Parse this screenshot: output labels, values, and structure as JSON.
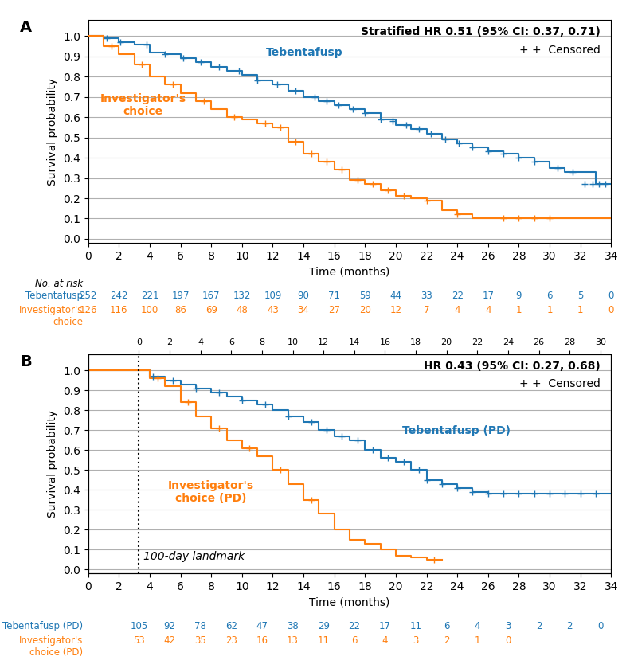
{
  "chart_data": [
    {
      "type": "line",
      "line_style": "steps",
      "marker": "+",
      "panel_label": "A",
      "hr_text": "Stratified HR 0.51 (95% CI: 0.37, 0.71)",
      "censored_label": "+ +  Censored",
      "xlabel": "Time (months)",
      "ylabel": "Survival probability",
      "xlim": [
        0,
        34
      ],
      "ylim": [
        -0.02,
        1.08
      ],
      "xticks": [
        0,
        2,
        4,
        6,
        8,
        10,
        12,
        14,
        16,
        18,
        20,
        22,
        24,
        26,
        28,
        30,
        32,
        34
      ],
      "yticks": [
        0.0,
        0.1,
        0.2,
        0.3,
        0.4,
        0.5,
        0.6,
        0.7,
        0.8,
        0.9,
        1.0
      ],
      "grid": "y",
      "series": [
        {
          "name": "Tebentafusp",
          "color": "#1f77b4",
          "x": [
            0,
            1,
            2,
            3,
            4,
            5,
            6,
            7,
            8,
            9,
            10,
            11,
            12,
            13,
            14,
            15,
            16,
            17,
            18,
            19,
            20,
            21,
            22,
            23,
            24,
            25,
            26,
            27,
            28,
            29,
            30,
            31,
            32,
            33,
            34
          ],
          "values": [
            1.0,
            0.99,
            0.97,
            0.96,
            0.92,
            0.91,
            0.89,
            0.87,
            0.85,
            0.83,
            0.81,
            0.78,
            0.76,
            0.73,
            0.7,
            0.68,
            0.66,
            0.64,
            0.62,
            0.59,
            0.56,
            0.54,
            0.52,
            0.49,
            0.47,
            0.45,
            0.43,
            0.42,
            0.4,
            0.38,
            0.35,
            0.33,
            0.33,
            0.27,
            0.27
          ],
          "censored_x": [
            1.2,
            2.1,
            3.8,
            5.0,
            6.2,
            7.3,
            8.5,
            9.8,
            11.0,
            12.3,
            13.5,
            14.7,
            15.5,
            16.3,
            17.2,
            18.0,
            19.0,
            19.8,
            20.7,
            21.5,
            22.3,
            23.2,
            24.1,
            25.0,
            26.0,
            27.0,
            28.0,
            29.0,
            30.5,
            31.5,
            32.3,
            32.8,
            33.2,
            33.6
          ],
          "censored_values": [
            0.99,
            0.97,
            0.96,
            0.91,
            0.89,
            0.87,
            0.85,
            0.83,
            0.78,
            0.76,
            0.73,
            0.7,
            0.68,
            0.66,
            0.64,
            0.62,
            0.59,
            0.58,
            0.56,
            0.54,
            0.52,
            0.49,
            0.47,
            0.45,
            0.43,
            0.42,
            0.4,
            0.38,
            0.35,
            0.33,
            0.27,
            0.27,
            0.27,
            0.27
          ]
        },
        {
          "name": "Investigator's\nchoice",
          "color": "#ff7f0e",
          "x": [
            0,
            1,
            2,
            3,
            4,
            5,
            6,
            7,
            8,
            9,
            10,
            11,
            12,
            13,
            14,
            15,
            16,
            17,
            18,
            19,
            20,
            21,
            22,
            23,
            24,
            25,
            26,
            27,
            28,
            29,
            30,
            31,
            32,
            33,
            34
          ],
          "values": [
            1.0,
            0.95,
            0.91,
            0.86,
            0.8,
            0.76,
            0.72,
            0.68,
            0.64,
            0.6,
            0.59,
            0.57,
            0.55,
            0.48,
            0.42,
            0.38,
            0.34,
            0.29,
            0.27,
            0.24,
            0.21,
            0.2,
            0.19,
            0.14,
            0.12,
            0.1,
            0.1,
            0.1,
            0.1,
            0.1,
            0.1,
            0.1,
            0.1,
            0.1,
            0.1
          ],
          "censored_x": [
            1.5,
            3.5,
            5.5,
            7.5,
            9.5,
            11.5,
            12.5,
            13.5,
            14.5,
            15.5,
            16.5,
            17.5,
            18.5,
            19.5,
            20.5,
            22.0,
            24.0,
            27.0,
            28.0,
            29.0,
            30.0
          ],
          "censored_values": [
            0.95,
            0.86,
            0.76,
            0.68,
            0.6,
            0.57,
            0.55,
            0.48,
            0.42,
            0.38,
            0.34,
            0.29,
            0.27,
            0.24,
            0.21,
            0.19,
            0.12,
            0.1,
            0.1,
            0.1,
            0.1
          ]
        }
      ],
      "at_risk": {
        "title": "No. at risk",
        "rows": [
          {
            "x": [
              0,
              2,
              4,
              6,
              8,
              10,
              12,
              14,
              16,
              18,
              20,
              22,
              24,
              26,
              28,
              30,
              32,
              34
            ],
            "values": [
              252,
              242,
              221,
              197,
              167,
              132,
              109,
              90,
              71,
              59,
              44,
              33,
              22,
              17,
              9,
              6,
              5,
              0
            ]
          },
          {
            "x": [
              0,
              2,
              4,
              6,
              8,
              10,
              12,
              14,
              16,
              18,
              20,
              22,
              24,
              26,
              28,
              30,
              32,
              34
            ],
            "values": [
              126,
              116,
              100,
              86,
              69,
              48,
              43,
              34,
              27,
              20,
              12,
              7,
              4,
              4,
              1,
              1,
              1,
              0
            ]
          }
        ]
      }
    },
    {
      "type": "line",
      "line_style": "steps",
      "marker": "+",
      "panel_label": "B",
      "hr_text": "HR 0.43 (95% CI: 0.27, 0.68)",
      "censored_label": "+ +  Censored",
      "xlabel": "Time (months)",
      "ylabel": "Survival probability",
      "xlim": [
        0,
        34
      ],
      "ylim": [
        -0.02,
        1.08
      ],
      "xticks": [
        0,
        2,
        4,
        6,
        8,
        10,
        12,
        14,
        16,
        18,
        20,
        22,
        24,
        26,
        28,
        30,
        32,
        34
      ],
      "yticks": [
        0.0,
        0.1,
        0.2,
        0.3,
        0.4,
        0.5,
        0.6,
        0.7,
        0.8,
        0.9,
        1.0
      ],
      "x2lim": [
        0,
        34
      ],
      "x2ticks": [
        {
          "value": 3.3,
          "label": "0"
        },
        {
          "value": 5.3,
          "label": "2"
        },
        {
          "value": 7.3,
          "label": "4"
        },
        {
          "value": 9.3,
          "label": "6"
        },
        {
          "value": 11.3,
          "label": "8"
        },
        {
          "value": 13.3,
          "label": "10"
        },
        {
          "value": 15.3,
          "label": "12"
        },
        {
          "value": 17.3,
          "label": "14"
        },
        {
          "value": 19.3,
          "label": "16"
        },
        {
          "value": 21.3,
          "label": "18"
        },
        {
          "value": 23.3,
          "label": "20"
        },
        {
          "value": 25.3,
          "label": "22"
        },
        {
          "value": 27.3,
          "label": "24"
        },
        {
          "value": 29.3,
          "label": "26"
        },
        {
          "value": 31.3,
          "label": "28"
        },
        {
          "value": 33.3,
          "label": "30"
        }
      ],
      "grid": "y",
      "landmark": {
        "x": 3.3,
        "label": "100-day landmark"
      },
      "series": [
        {
          "name": "Tebentafusp (PD)",
          "color": "#1f77b4",
          "x": [
            0,
            3.3,
            4,
            5,
            6,
            7,
            8,
            9,
            10,
            11,
            12,
            13,
            14,
            15,
            16,
            17,
            18,
            19,
            20,
            21,
            22,
            23,
            24,
            25,
            26,
            27,
            28,
            29,
            30,
            31,
            32,
            33,
            34
          ],
          "values": [
            1.0,
            1.0,
            0.97,
            0.95,
            0.93,
            0.91,
            0.89,
            0.87,
            0.85,
            0.83,
            0.8,
            0.77,
            0.74,
            0.7,
            0.67,
            0.65,
            0.6,
            0.56,
            0.54,
            0.5,
            0.45,
            0.43,
            0.41,
            0.39,
            0.38,
            0.38,
            0.38,
            0.38,
            0.38,
            0.38,
            0.38,
            0.38,
            0.38
          ],
          "censored_x": [
            4.2,
            5.5,
            7.0,
            8.5,
            10.0,
            11.5,
            13.0,
            14.5,
            15.5,
            16.5,
            17.5,
            18.5,
            19.5,
            20.5,
            21.5,
            22.0,
            23.0,
            24.0,
            25.0,
            26.0,
            27.0,
            28.0,
            29.0,
            30.0,
            31.0,
            32.0,
            33.0
          ],
          "censored_values": [
            0.97,
            0.95,
            0.91,
            0.89,
            0.85,
            0.83,
            0.77,
            0.74,
            0.7,
            0.67,
            0.65,
            0.6,
            0.56,
            0.54,
            0.5,
            0.45,
            0.43,
            0.41,
            0.39,
            0.38,
            0.38,
            0.38,
            0.38,
            0.38,
            0.38,
            0.38,
            0.38
          ]
        },
        {
          "name": "Investigator's\nchoice (PD)",
          "color": "#ff7f0e",
          "x": [
            0,
            3.3,
            4,
            5,
            6,
            7,
            8,
            9,
            10,
            11,
            12,
            13,
            14,
            15,
            16,
            17,
            18,
            19,
            20,
            21,
            22,
            23
          ],
          "values": [
            1.0,
            1.0,
            0.96,
            0.92,
            0.84,
            0.77,
            0.71,
            0.65,
            0.61,
            0.57,
            0.5,
            0.43,
            0.35,
            0.28,
            0.2,
            0.15,
            0.13,
            0.1,
            0.07,
            0.06,
            0.05,
            0.05
          ],
          "censored_x": [
            4.5,
            6.5,
            8.5,
            10.5,
            12.5,
            14.5,
            22.5
          ],
          "censored_values": [
            0.96,
            0.84,
            0.71,
            0.61,
            0.5,
            0.35,
            0.05
          ]
        }
      ],
      "at_risk": {
        "rows": [
          {
            "x": [
              3.3,
              5.3,
              7.3,
              9.3,
              11.3,
              13.3,
              15.3,
              17.3,
              19.3,
              21.3,
              23.3,
              25.3,
              27.3,
              29.3,
              31.3,
              33.3
            ],
            "values": [
              105,
              92,
              78,
              62,
              47,
              38,
              29,
              22,
              17,
              11,
              6,
              4,
              3,
              2,
              2,
              0
            ]
          },
          {
            "x": [
              3.3,
              5.3,
              7.3,
              9.3,
              11.3,
              13.3,
              15.3,
              17.3,
              19.3,
              21.3,
              23.3,
              25.3,
              27.3
            ],
            "values": [
              53,
              42,
              35,
              23,
              16,
              13,
              11,
              6,
              4,
              3,
              2,
              1,
              0
            ]
          }
        ]
      }
    }
  ]
}
